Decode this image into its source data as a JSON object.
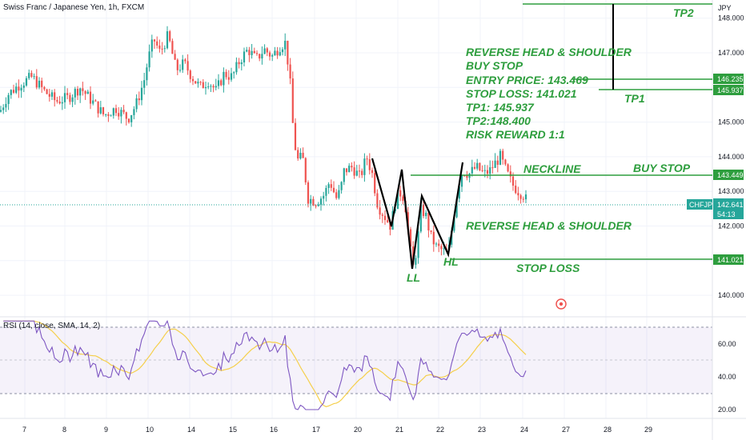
{
  "header": {
    "title": "Swiss Franc / Japanese Yen, 1h, FXCM",
    "currency": "JPY"
  },
  "annotations": {
    "setup_lines": [
      "REVERSE HEAD & SHOULDER",
      "BUY STOP",
      "ENTRY PRICE: 143.469",
      "STOP LOSS: 141.021",
      "TP1: 145.937",
      "TP2:148.400",
      "RISK REWARD 1:1"
    ],
    "neckline": "NECKLINE",
    "buy_stop": "BUY STOP",
    "pattern": "REVERSE HEAD & SHOULDER",
    "stop_loss": "STOP LOSS",
    "tp1": "TP1",
    "tp2": "TP2",
    "ll": "LL",
    "hl": "HL"
  },
  "price_labels": {
    "tp1": "145.937",
    "tp1b": "146.235",
    "neckline": "143.449",
    "stop": "141.021",
    "symbol": "CHFJPY",
    "current": "142.641",
    "countdown": "54:13"
  },
  "rsi": {
    "label": "RSI (14, close, SMA, 14, 2)"
  },
  "colors": {
    "up": "#26a69a",
    "down": "#ef5350",
    "annotation": "#2e9e3e",
    "rsi": "#7e57c2",
    "rsi_ma": "#f5cf4a"
  },
  "chart_data": {
    "type": "candlestick",
    "title": "Swiss Franc / Japanese Yen, 1h, FXCM",
    "y_axis": {
      "ticks": [
        140,
        141,
        142,
        143,
        144,
        145,
        146,
        147,
        148
      ],
      "range": [
        139.7,
        148.45
      ],
      "unit": "JPY"
    },
    "x_axis": {
      "ticks": [
        "7",
        "8",
        "9",
        "10",
        "14",
        "15",
        "16",
        "17",
        "20",
        "21",
        "22",
        "23",
        "24",
        "27",
        "28",
        "29"
      ]
    },
    "price_path": [
      [
        0,
        145.3
      ],
      [
        10,
        145.8
      ],
      [
        25,
        146.1
      ],
      [
        40,
        146.3
      ],
      [
        55,
        145.9
      ],
      [
        70,
        145.6
      ],
      [
        85,
        145.7
      ],
      [
        100,
        146.0
      ],
      [
        115,
        145.6
      ],
      [
        130,
        145.2
      ],
      [
        145,
        145.4
      ],
      [
        160,
        145.1
      ],
      [
        170,
        145.5
      ],
      [
        180,
        146.2
      ],
      [
        185,
        146.8
      ],
      [
        192,
        147.4
      ],
      [
        200,
        147.0
      ],
      [
        210,
        147.5
      ],
      [
        220,
        146.5
      ],
      [
        230,
        146.7
      ],
      [
        240,
        146.3
      ],
      [
        250,
        146.0
      ],
      [
        260,
        146.2
      ],
      [
        270,
        145.9
      ],
      [
        280,
        146.4
      ],
      [
        290,
        146.3
      ],
      [
        300,
        146.8
      ],
      [
        310,
        147.1
      ],
      [
        320,
        146.8
      ],
      [
        330,
        147.1
      ],
      [
        340,
        146.9
      ],
      [
        350,
        147.2
      ],
      [
        357,
        147.3
      ],
      [
        363,
        146.0
      ],
      [
        367,
        144.5
      ],
      [
        372,
        143.9
      ],
      [
        378,
        144.0
      ],
      [
        385,
        142.8
      ],
      [
        395,
        142.7
      ],
      [
        405,
        142.9
      ],
      [
        412,
        143.3
      ],
      [
        420,
        142.8
      ],
      [
        425,
        143.0
      ],
      [
        430,
        143.6
      ],
      [
        440,
        143.7
      ],
      [
        450,
        143.4
      ],
      [
        458,
        144.0
      ],
      [
        465,
        143.5
      ],
      [
        472,
        142.6
      ],
      [
        480,
        142.3
      ],
      [
        488,
        142.0
      ],
      [
        495,
        142.8
      ],
      [
        502,
        143.0
      ],
      [
        507,
        142.5
      ],
      [
        512,
        141.4
      ],
      [
        516,
        140.8
      ],
      [
        521,
        141.4
      ],
      [
        526,
        142.5
      ],
      [
        532,
        142.3
      ],
      [
        538,
        141.7
      ],
      [
        545,
        141.4
      ],
      [
        552,
        141.3
      ],
      [
        560,
        141.2
      ],
      [
        565,
        142.0
      ],
      [
        572,
        143.1
      ],
      [
        578,
        143.6
      ],
      [
        586,
        143.5
      ],
      [
        595,
        143.7
      ],
      [
        605,
        143.5
      ],
      [
        612,
        143.6
      ],
      [
        618,
        143.8
      ],
      [
        625,
        144.0
      ],
      [
        632,
        143.6
      ],
      [
        640,
        143.2
      ],
      [
        648,
        143.0
      ],
      [
        654,
        142.9
      ],
      [
        660,
        142.64
      ]
    ],
    "levels": {
      "entry": 143.469,
      "neckline": 143.449,
      "stop_loss": 141.021,
      "tp1": 145.937,
      "tp2": 148.4,
      "current": 142.641
    },
    "pattern": "reverse head & shoulders",
    "rsi": {
      "period": 14,
      "ticks": [
        20,
        40,
        60
      ],
      "upper_band": 70,
      "lower_band": 30,
      "range": [
        20,
        74
      ]
    }
  }
}
